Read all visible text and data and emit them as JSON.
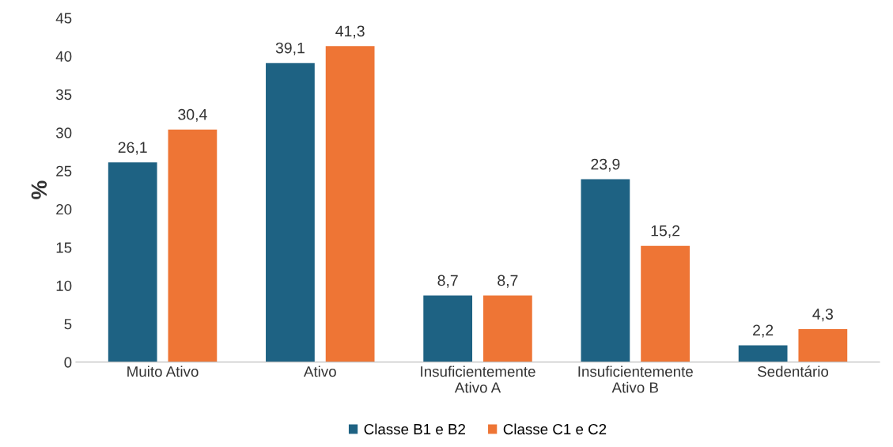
{
  "chart_data": {
    "type": "bar",
    "ylabel": "%",
    "categories": [
      "Muito Ativo",
      "Ativo",
      "Insuficientemente\nAtivo A",
      "Insuficientemente\nAtivo B",
      "Sedentário"
    ],
    "series": [
      {
        "name": "Classe B1 e B2",
        "color": "#1e6283",
        "values": [
          26.1,
          39.1,
          8.7,
          23.9,
          2.2
        ],
        "value_labels": [
          "26,1",
          "39,1",
          "8,7",
          "23,9",
          "2,2"
        ]
      },
      {
        "name": "Classe C1 e C2",
        "color": "#ee7535",
        "values": [
          30.4,
          41.3,
          8.7,
          15.2,
          4.3
        ],
        "value_labels": [
          "30,4",
          "41,3",
          "8,7",
          "15,2",
          "4,3"
        ]
      }
    ],
    "ylim": [
      0,
      45
    ],
    "yticks": [
      0,
      5,
      10,
      15,
      20,
      25,
      30,
      35,
      40,
      45
    ],
    "grid": false,
    "legend": "bottom"
  }
}
